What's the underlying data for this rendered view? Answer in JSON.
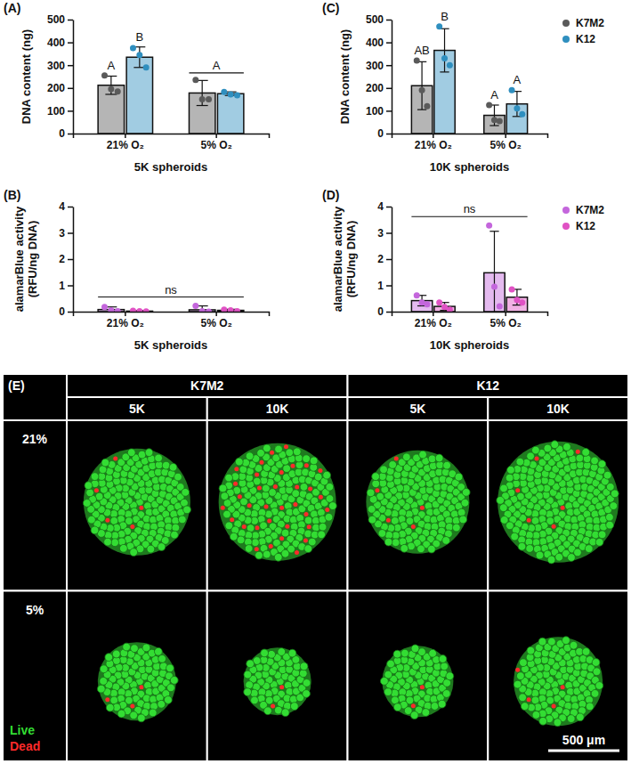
{
  "chart_data": [
    {
      "type": "bar",
      "panel_label": "(A)",
      "y_label": "DNA content (ng)",
      "x_label": "5K spheroids",
      "categories": [
        "21% O₂",
        "5% O₂"
      ],
      "ylim": [
        0,
        500
      ],
      "yticks": [
        0,
        100,
        200,
        300,
        400,
        500
      ],
      "series": [
        {
          "color": "#5a5a5a",
          "values": [
            212,
            178
          ],
          "errors": [
            40,
            55
          ],
          "points": [
            [
              255,
              195,
              185
            ],
            [
              235,
              150,
              150
            ]
          ],
          "letters": [
            "A",
            null
          ]
        },
        {
          "color": "#2f8fbf",
          "values": [
            335,
            175
          ],
          "errors": [
            45,
            8
          ],
          "points": [
            [
              375,
              345,
              290
            ],
            [
              183,
              172,
              168
            ]
          ],
          "letters": [
            "B",
            null
          ]
        }
      ],
      "group_letters": [
        null,
        "A"
      ]
    },
    {
      "type": "bar",
      "panel_label": "(B)",
      "y_label": "alamarBlue activity (RFU/ng DNA)",
      "x_label": "5K spheroids",
      "categories": [
        "21% O₂",
        "5% O₂"
      ],
      "ylim": [
        0,
        4
      ],
      "yticks": [
        0,
        1,
        2,
        3,
        4
      ],
      "series": [
        {
          "color": "#c466dc",
          "values": [
            0.08,
            0.07
          ],
          "errors": [
            0.1,
            0.15
          ],
          "points": [
            [
              0.18,
              0.05,
              0.02
            ],
            [
              0.22,
              0.02,
              0.0
            ]
          ]
        },
        {
          "color": "#e052c4",
          "values": [
            0.02,
            0.05
          ],
          "errors": [
            0.02,
            0.04
          ],
          "points": [
            [
              0.03,
              0.02,
              0.01
            ],
            [
              0.08,
              0.05,
              0.02
            ]
          ]
        }
      ],
      "span_label": "ns"
    },
    {
      "type": "bar",
      "panel_label": "(C)",
      "y_label": "DNA content (ng)",
      "x_label": "10K spheroids",
      "categories": [
        "21% O₂",
        "5% O₂"
      ],
      "ylim": [
        0,
        500
      ],
      "yticks": [
        0,
        100,
        200,
        300,
        400,
        500
      ],
      "legend": "top-right",
      "series": [
        {
          "name": "K7M2",
          "color": "#5a5a5a",
          "values": [
            210,
            80
          ],
          "errors": [
            105,
            45
          ],
          "points": [
            [
              320,
              190,
              120
            ],
            [
              125,
              60,
              55
            ]
          ],
          "letters": [
            "AB",
            "A"
          ]
        },
        {
          "name": "K12",
          "color": "#2f8fbf",
          "values": [
            365,
            130
          ],
          "errors": [
            95,
            55
          ],
          "points": [
            [
              470,
              330,
              300
            ],
            [
              190,
              110,
              85
            ]
          ],
          "letters": [
            "B",
            "A"
          ]
        }
      ]
    },
    {
      "type": "bar",
      "panel_label": "(D)",
      "y_label": "alamarBlue activity (RFU/ng DNA)",
      "x_label": "10K spheroids",
      "categories": [
        "21% O₂",
        "5% O₂"
      ],
      "ylim": [
        0,
        4
      ],
      "yticks": [
        0,
        1,
        2,
        3,
        4
      ],
      "legend": "top-right",
      "series": [
        {
          "name": "K7M2",
          "color": "#c466dc",
          "values": [
            0.42,
            1.48
          ],
          "errors": [
            0.2,
            1.58
          ],
          "points": [
            [
              0.62,
              0.35,
              0.28
            ],
            [
              3.28,
              0.95,
              0.2
            ]
          ]
        },
        {
          "name": "K12",
          "color": "#e052c4",
          "values": [
            0.2,
            0.55
          ],
          "errors": [
            0.15,
            0.3
          ],
          "points": [
            [
              0.35,
              0.18,
              0.08
            ],
            [
              0.85,
              0.45,
              0.35
            ]
          ]
        }
      ],
      "span_label": "ns"
    }
  ],
  "image_panel": {
    "panel_label": "(E)",
    "cell_lines": [
      "K7M2",
      "K12"
    ],
    "seeding": [
      "5K",
      "10K",
      "5K",
      "10K"
    ],
    "oxygen": [
      "21%",
      "5%"
    ],
    "stains": [
      {
        "name": "Live",
        "color": "#33dd33"
      },
      {
        "name": "Dead",
        "color": "#ff2a2a"
      }
    ],
    "scale_bar": "500 μm"
  }
}
